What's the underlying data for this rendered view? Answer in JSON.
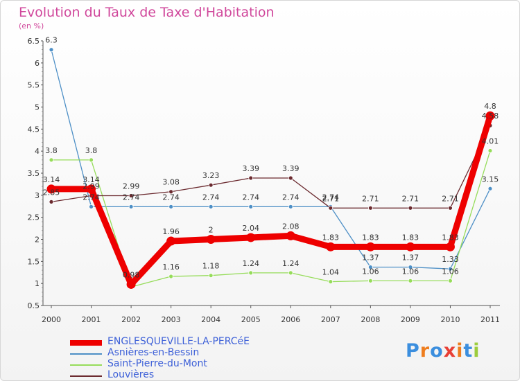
{
  "chart_data": {
    "type": "line",
    "title": "Evolution du Taux de Taxe d'Habitation",
    "unit_label": "(en %)",
    "x": [
      "2000",
      "2001",
      "2002",
      "2003",
      "2004",
      "2005",
      "2006",
      "2007",
      "2008",
      "2009",
      "2010",
      "2011"
    ],
    "ylim": [
      0.5,
      6.5
    ],
    "yticks": [
      "0.5",
      "1",
      "1.5",
      "2",
      "2.5",
      "3",
      "3.5",
      "4",
      "4.5",
      "5",
      "5.5",
      "6",
      "6.5"
    ],
    "series": [
      {
        "name": "ENGLESQUEVILLE-LA-PERCéE",
        "color": "#ee0000",
        "emphasis": true,
        "values": [
          3.14,
          3.14,
          0.98,
          1.96,
          2.0,
          2.04,
          2.08,
          1.83,
          1.83,
          1.83,
          1.83,
          4.8
        ],
        "labels": [
          "3.14",
          "3.14",
          "0.98",
          "1.96",
          "2",
          "2.04",
          "2.08",
          "1.83",
          "1.83",
          "1.83",
          "1.83",
          "4.8"
        ]
      },
      {
        "name": "Asnières-en-Bessin",
        "color": "#4d8fc6",
        "values": [
          6.3,
          2.74,
          2.74,
          2.74,
          2.74,
          2.74,
          2.74,
          2.74,
          1.37,
          1.37,
          1.33,
          3.15
        ],
        "labels": [
          "6.3",
          "2.74",
          "2.74",
          "2.74",
          "2.74",
          "2.74",
          "2.74",
          "2.74",
          "1.37",
          "1.37",
          "1.33",
          "3.15"
        ]
      },
      {
        "name": "Saint-Pierre-du-Mont",
        "color": "#96dc5a",
        "values": [
          3.8,
          3.8,
          0.92,
          1.16,
          1.18,
          1.24,
          1.24,
          1.04,
          1.06,
          1.06,
          1.06,
          4.01
        ],
        "labels": [
          "3.8",
          "3.8",
          "",
          "1.16",
          "1.18",
          "1.24",
          "1.24",
          "1.04",
          "1.06",
          "1.06",
          "1.06",
          "4.01"
        ]
      },
      {
        "name": "Louvières",
        "color": "#6b2a2f",
        "values": [
          2.85,
          2.99,
          2.99,
          3.08,
          3.23,
          3.39,
          3.39,
          2.71,
          2.71,
          2.71,
          2.71,
          4.58
        ],
        "labels": [
          "2.85",
          "2.99",
          "2.99",
          "3.08",
          "3.23",
          "3.39",
          "3.39",
          "2.71",
          "2.71",
          "2.71",
          "2.71",
          "4.58"
        ]
      }
    ]
  },
  "logo": {
    "text": "Proxiti",
    "letter_colors": [
      "#3b8ede",
      "#ee7d1e",
      "#3b8ede",
      "#e83f35",
      "#ee7d1e",
      "#3b8ede",
      "#9ccc3c"
    ]
  }
}
